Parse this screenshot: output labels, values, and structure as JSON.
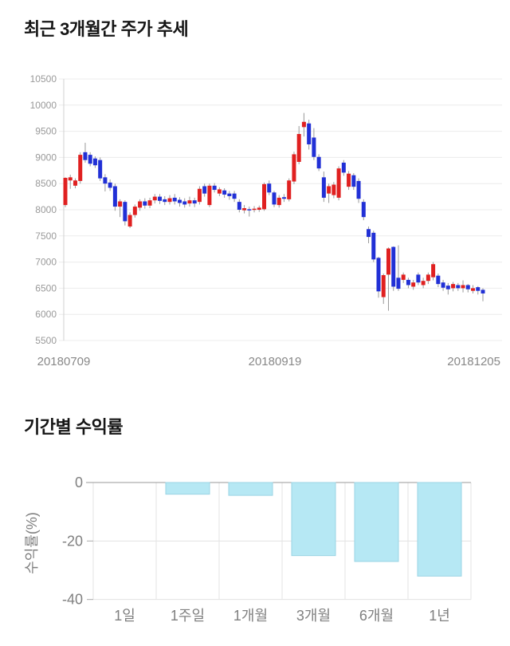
{
  "page": {
    "background": "#ffffff"
  },
  "chart_data": [
    {
      "type": "candlestick",
      "title": "최근 3개월간 주가 추세",
      "xlabel": "",
      "ylabel": "",
      "ylim": [
        5500,
        10500
      ],
      "y_ticks": [
        10500,
        10000,
        9500,
        9000,
        8500,
        8000,
        7500,
        7000,
        6500,
        6000,
        5500
      ],
      "x_tick_labels": [
        "20180709",
        "20180919",
        "20181205"
      ],
      "grid": "horizontal",
      "legend_position": "none",
      "colors": {
        "up": "#e02020",
        "down": "#2130d6",
        "wick": "#999999",
        "grid": "#ececec",
        "axis": "#d0d0d0",
        "tick_text": "#999999",
        "date_text": "#888888"
      },
      "candles_ohlc_note": "each entry is [open, close, low, high]; close>=open renders red (up), close<open renders blue (down)",
      "candles_ohlc": [
        [
          8090,
          8610,
          8050,
          8620
        ],
        [
          8560,
          8620,
          8400,
          8670
        ],
        [
          8460,
          8560,
          8410,
          8600
        ],
        [
          8550,
          9050,
          8500,
          9100
        ],
        [
          9100,
          8950,
          8900,
          9280
        ],
        [
          9050,
          8880,
          8830,
          9100
        ],
        [
          8980,
          8850,
          8800,
          9020
        ],
        [
          8950,
          8600,
          8550,
          9000
        ],
        [
          8620,
          8500,
          8350,
          8680
        ],
        [
          8520,
          8420,
          8360,
          8580
        ],
        [
          8450,
          8060,
          7980,
          8500
        ],
        [
          8060,
          8160,
          7860,
          8200
        ],
        [
          8150,
          7780,
          7700,
          8180
        ],
        [
          7680,
          7900,
          7650,
          7950
        ],
        [
          7900,
          8060,
          7850,
          8100
        ],
        [
          8040,
          8160,
          7980,
          8200
        ],
        [
          8160,
          8080,
          8020,
          8220
        ],
        [
          8080,
          8180,
          8030,
          8230
        ],
        [
          8180,
          8250,
          8120,
          8300
        ],
        [
          8250,
          8170,
          8110,
          8300
        ],
        [
          8200,
          8150,
          8090,
          8260
        ],
        [
          8150,
          8220,
          8100,
          8280
        ],
        [
          8230,
          8160,
          8100,
          8300
        ],
        [
          8190,
          8130,
          8060,
          8240
        ],
        [
          8160,
          8100,
          8040,
          8220
        ],
        [
          8120,
          8180,
          8060,
          8250
        ],
        [
          8180,
          8120,
          8050,
          8230
        ],
        [
          8150,
          8400,
          8100,
          8450
        ],
        [
          8450,
          8310,
          8250,
          8500
        ],
        [
          8090,
          8460,
          8050,
          8500
        ],
        [
          8460,
          8380,
          8330,
          8510
        ],
        [
          8310,
          8390,
          8260,
          8430
        ],
        [
          8370,
          8290,
          8230,
          8410
        ],
        [
          8310,
          8260,
          8190,
          8360
        ],
        [
          8310,
          8210,
          8150,
          8360
        ],
        [
          8150,
          8000,
          7950,
          8200
        ],
        [
          7990,
          8030,
          7930,
          8090
        ],
        [
          8010,
          7990,
          7870,
          8060
        ],
        [
          8000,
          8020,
          7950,
          8070
        ],
        [
          8000,
          8040,
          7960,
          8080
        ],
        [
          8010,
          8490,
          7980,
          8520
        ],
        [
          8500,
          8330,
          8280,
          8560
        ],
        [
          8330,
          8100,
          8050,
          8360
        ],
        [
          8090,
          8230,
          8040,
          8280
        ],
        [
          8240,
          8210,
          8150,
          8300
        ],
        [
          8200,
          8560,
          8160,
          8600
        ],
        [
          8540,
          9060,
          8490,
          9110
        ],
        [
          8915,
          9448,
          8870,
          9600
        ],
        [
          9580,
          9680,
          9400,
          9850
        ],
        [
          9650,
          9250,
          9150,
          9720
        ],
        [
          9380,
          9010,
          8950,
          9560
        ],
        [
          9010,
          8790,
          8740,
          9060
        ],
        [
          8620,
          8230,
          8150,
          8730
        ],
        [
          8310,
          8450,
          8130,
          8500
        ],
        [
          8280,
          8480,
          8220,
          8530
        ],
        [
          8230,
          8790,
          8180,
          8830
        ],
        [
          8900,
          8710,
          8650,
          8950
        ],
        [
          8440,
          8690,
          8380,
          8740
        ],
        [
          8660,
          8440,
          8380,
          8700
        ],
        [
          8550,
          8210,
          8130,
          8600
        ],
        [
          8150,
          7860,
          7800,
          8200
        ],
        [
          7630,
          7480,
          7360,
          7680
        ],
        [
          7560,
          7050,
          7000,
          7600
        ],
        [
          7080,
          6440,
          6320,
          7100
        ],
        [
          6330,
          6750,
          6200,
          6780
        ],
        [
          6760,
          7260,
          6070,
          7280
        ],
        [
          7290,
          6530,
          6450,
          7300
        ],
        [
          6700,
          6490,
          6450,
          7320
        ],
        [
          6660,
          6760,
          6600,
          6800
        ],
        [
          6660,
          6560,
          6500,
          6700
        ],
        [
          6530,
          6610,
          6470,
          6660
        ],
        [
          6760,
          6610,
          6560,
          6800
        ],
        [
          6560,
          6640,
          6500,
          6700
        ],
        [
          6640,
          6760,
          6580,
          6800
        ],
        [
          6710,
          6960,
          6650,
          7000
        ],
        [
          6740,
          6580,
          6520,
          6780
        ],
        [
          6610,
          6510,
          6450,
          6660
        ],
        [
          6550,
          6480,
          6380,
          6600
        ],
        [
          6500,
          6580,
          6440,
          6620
        ],
        [
          6560,
          6500,
          6450,
          6600
        ],
        [
          6500,
          6560,
          6420,
          6650
        ],
        [
          6560,
          6480,
          6420,
          6580
        ],
        [
          6450,
          6500,
          6400,
          6560
        ],
        [
          6520,
          6450,
          6380,
          6540
        ],
        [
          6470,
          6400,
          6250,
          6500
        ]
      ]
    },
    {
      "type": "bar",
      "title": "기간별 수익률",
      "xlabel": "",
      "ylabel": "수익률(%)",
      "categories": [
        "1일",
        "1주일",
        "1개월",
        "3개월",
        "6개월",
        "1년"
      ],
      "values": [
        0,
        -4,
        -4.4,
        -25,
        -27,
        -32
      ],
      "y_ticks": [
        0,
        -20,
        -40
      ],
      "ylim": [
        -40,
        0
      ],
      "grid": "on",
      "legend_position": "none",
      "colors": {
        "bar_fill": "#b6e8f4",
        "bar_stroke": "#9bd4e4",
        "zero_line": "#999999",
        "grid": "#e3e3e3",
        "tick_text": "#808080"
      }
    }
  ]
}
